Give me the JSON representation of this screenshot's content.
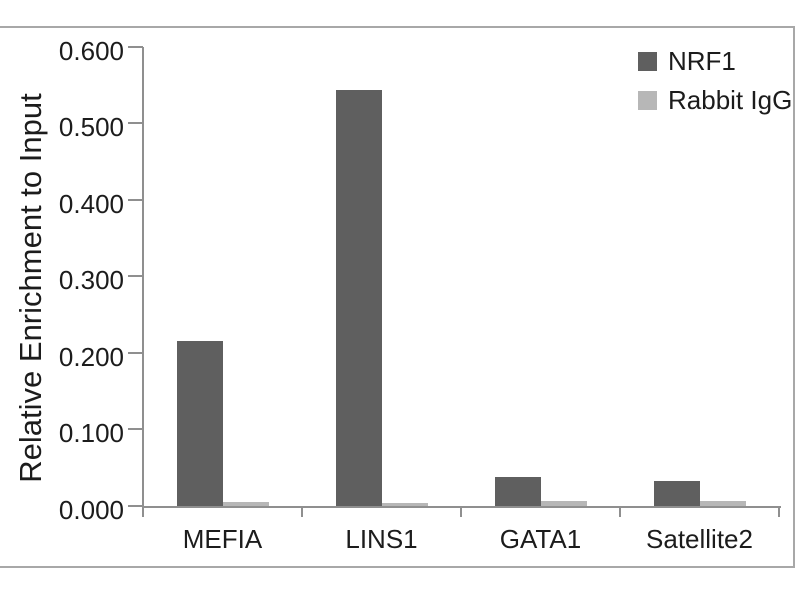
{
  "chart_data": {
    "type": "bar",
    "title": "",
    "xlabel": "",
    "ylabel": "Relative Enrichment to Input",
    "categories": [
      "MEFIA",
      "LINS1",
      "GATA1",
      "Satellite2"
    ],
    "series": [
      {
        "name": "NRF1",
        "color": "#5f5f5f",
        "values": [
          0.216,
          0.544,
          0.038,
          0.033
        ]
      },
      {
        "name": "Rabbit IgG",
        "color": "#b7b7b7",
        "values": [
          0.005,
          0.004,
          0.006,
          0.006
        ]
      }
    ],
    "ylim": [
      0,
      0.6
    ],
    "ytick_labels": [
      "0.000",
      "0.100",
      "0.200",
      "0.300",
      "0.400",
      "0.500",
      "0.600"
    ],
    "grid": false,
    "legend_position": "top-right"
  },
  "colors": {
    "bar_dark": "#5f5f5f",
    "bar_light": "#b7b7b7",
    "axis": "#8f8f8f",
    "frame": "#a8a8a8",
    "text": "#1c1c1c",
    "background": "#ffffff"
  }
}
